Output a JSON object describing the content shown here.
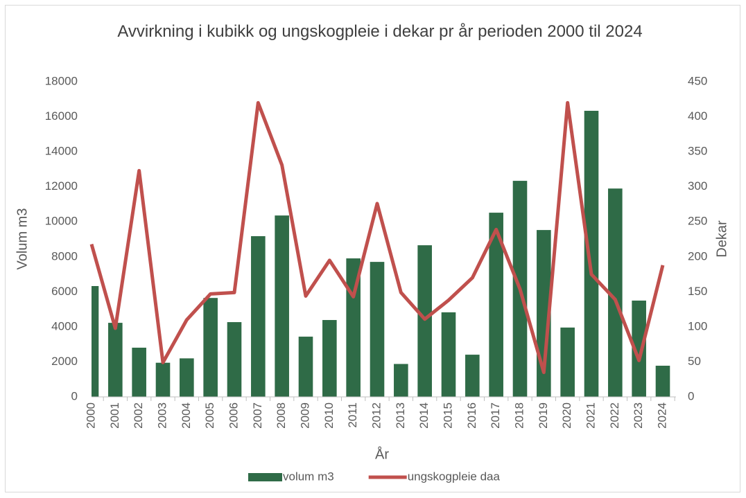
{
  "chart_data": {
    "type": "bar-line",
    "title": "Avvirkning i kubikk og ungskogpleie i dekar pr år perioden 2000 til 2024",
    "x_label": "År",
    "y_label": "Volum m3",
    "y2_label": "Dekar",
    "categories": [
      "2000",
      "2001",
      "2002",
      "2003",
      "2004",
      "2005",
      "2006",
      "2007",
      "2008",
      "2009",
      "2010",
      "2011",
      "2012",
      "2013",
      "2014",
      "2015",
      "2016",
      "2017",
      "2018",
      "2019",
      "2020",
      "2021",
      "2022",
      "2023",
      "2024"
    ],
    "series": [
      {
        "name": "volum m3",
        "type": "bar",
        "color": "#2f6b47",
        "values": [
          6330,
          4230,
          2810,
          1950,
          2200,
          5650,
          4270,
          9180,
          10360,
          3440,
          4390,
          7910,
          7710,
          1880,
          8660,
          4830,
          2410,
          10520,
          12340,
          9530,
          3960,
          16340,
          11900,
          5500,
          1780
        ]
      },
      {
        "name": "ungskogpleie daa",
        "type": "line",
        "axis": "y2",
        "color": "#c0504d",
        "values": [
          218,
          98,
          323,
          49,
          110,
          147,
          149,
          420,
          331,
          144,
          195,
          143,
          276,
          149,
          111,
          138,
          170,
          239,
          154,
          35,
          420,
          175,
          139,
          52,
          188
        ]
      }
    ],
    "ylim": [
      0,
      18000
    ],
    "yticks": [
      0,
      2000,
      4000,
      6000,
      8000,
      10000,
      12000,
      14000,
      16000,
      18000
    ],
    "y2lim": [
      0,
      450
    ],
    "y2ticks": [
      0,
      50,
      100,
      150,
      200,
      250,
      300,
      350,
      400,
      450
    ],
    "legend": "bottom"
  }
}
